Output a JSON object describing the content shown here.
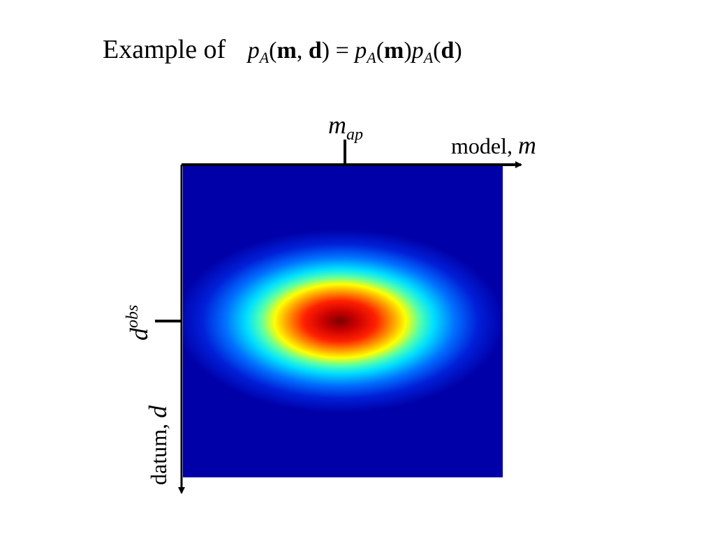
{
  "title": {
    "lead": "Example of",
    "formula": [
      {
        "text": "p",
        "style": "italic"
      },
      {
        "text": "A",
        "style": "sub"
      },
      {
        "text": "(",
        "style": "normal"
      },
      {
        "text": "m",
        "style": "bold"
      },
      {
        "text": ", ",
        "style": "normal"
      },
      {
        "text": "d",
        "style": "bold"
      },
      {
        "text": ") = ",
        "style": "normal"
      },
      {
        "text": "p",
        "style": "italic"
      },
      {
        "text": "A",
        "style": "sub"
      },
      {
        "text": "(",
        "style": "normal"
      },
      {
        "text": "m",
        "style": "bold"
      },
      {
        "text": ")",
        "style": "normal"
      },
      {
        "text": "p",
        "style": "italic"
      },
      {
        "text": "A",
        "style": "sub"
      },
      {
        "text": "(",
        "style": "normal"
      },
      {
        "text": "d",
        "style": "bold"
      },
      {
        "text": ")",
        "style": "normal"
      }
    ]
  },
  "axes": {
    "top_marker": {
      "symbol": "m",
      "sub": "ap"
    },
    "x_label": {
      "text": "model, ",
      "symbol": "m"
    },
    "left_marker": {
      "symbol": "d",
      "sup": "obs"
    },
    "y_label": {
      "text": "datum, ",
      "symbol": "d"
    }
  }
}
